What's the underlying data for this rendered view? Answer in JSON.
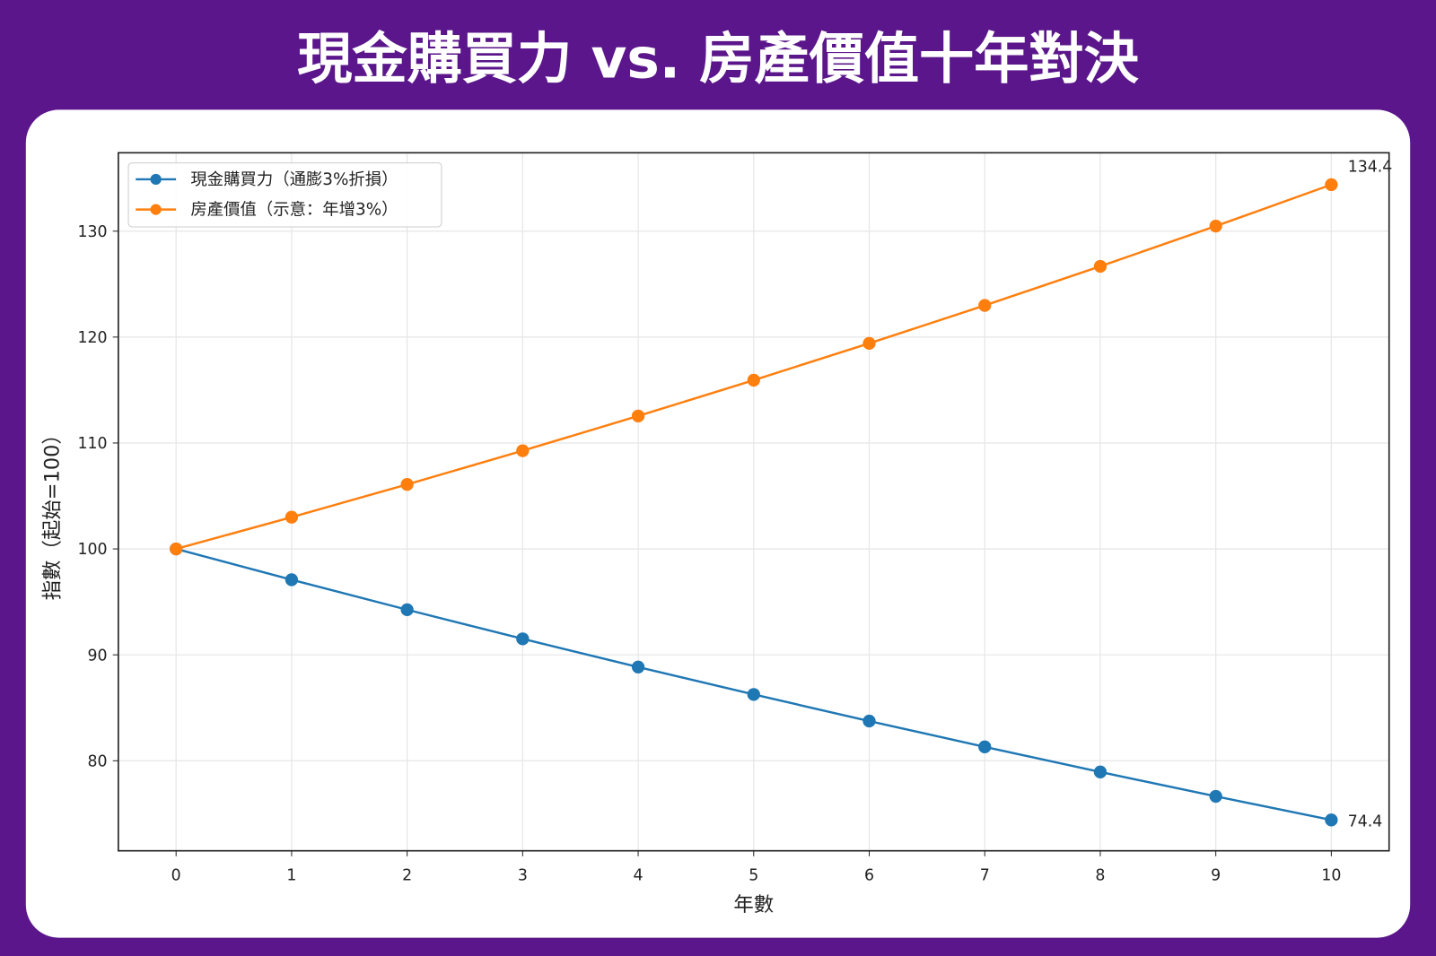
{
  "title": "現金購買力 vs. 房產價值十年對決",
  "colors": {
    "background": "#5a168a",
    "card": "#ffffff",
    "cash": "#1f77b4",
    "property": "#ff7f0e"
  },
  "chart_data": {
    "type": "line",
    "title": "",
    "xlabel": "年數",
    "ylabel": "指數（起始=100）",
    "x": [
      0,
      1,
      2,
      3,
      4,
      5,
      6,
      7,
      8,
      9,
      10
    ],
    "xticks": [
      "0",
      "1",
      "2",
      "3",
      "4",
      "5",
      "6",
      "7",
      "8",
      "9",
      "10"
    ],
    "yticks": [
      "80",
      "90",
      "100",
      "110",
      "120",
      "130"
    ],
    "xlim": [
      -0.5,
      10.5
    ],
    "ylim": [
      71.5,
      137.4
    ],
    "grid": true,
    "legend_position": "top-left",
    "series": [
      {
        "name": "現金購買力（通膨3%折損）",
        "color": "#1f77b4",
        "values": [
          100,
          97.09,
          94.26,
          91.51,
          88.85,
          86.26,
          83.75,
          81.31,
          78.94,
          76.64,
          74.41
        ],
        "end_label": "74.4"
      },
      {
        "name": "房產價值（示意：年增3%）",
        "color": "#ff7f0e",
        "values": [
          100,
          103,
          106.09,
          109.27,
          112.55,
          115.93,
          119.41,
          122.99,
          126.68,
          130.48,
          134.39
        ],
        "end_label": "134.4"
      }
    ]
  }
}
